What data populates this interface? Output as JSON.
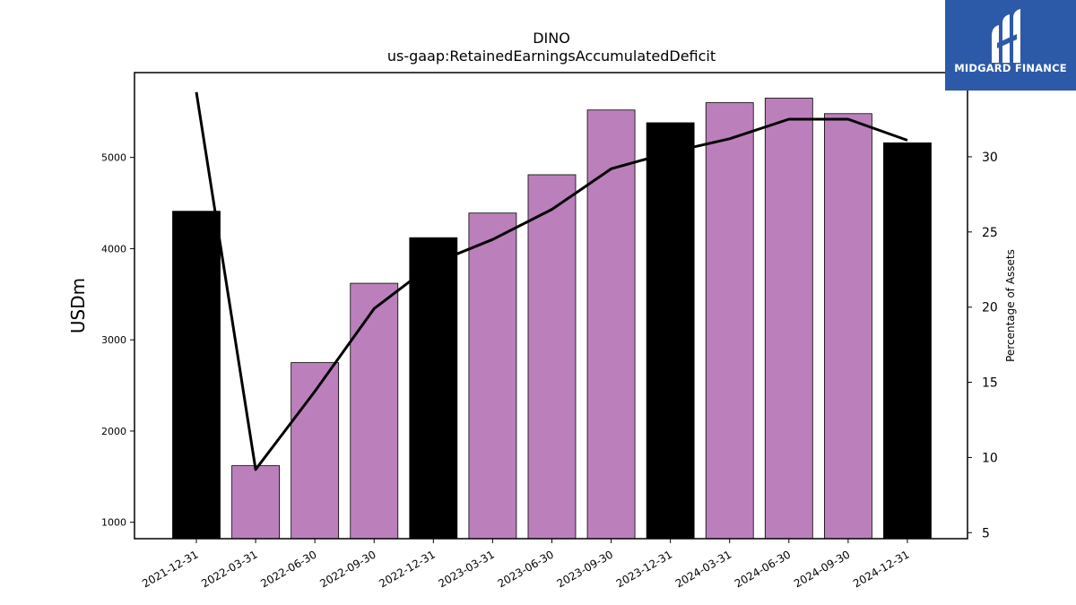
{
  "chart_data": {
    "type": "bar",
    "title": "DINO",
    "subtitle": "us-gaap:RetainedEarningsAccumulatedDeficit",
    "ylabel": "USDm",
    "y2label": "Percentage of Assets",
    "categories": [
      "2021-12-31",
      "2022-03-31",
      "2022-06-30",
      "2022-09-30",
      "2022-12-31",
      "2023-03-31",
      "2023-06-30",
      "2023-09-30",
      "2023-12-31",
      "2024-03-31",
      "2024-06-30",
      "2024-09-30",
      "2024-12-31"
    ],
    "values": [
      4410,
      1620,
      2750,
      3620,
      4120,
      4390,
      4810,
      5520,
      5380,
      5600,
      5650,
      5480,
      5160
    ],
    "bar_colors": [
      "#000000",
      "#bb80bb",
      "#bb80bb",
      "#bb80bb",
      "#000000",
      "#bb80bb",
      "#bb80bb",
      "#bb80bb",
      "#000000",
      "#bb80bb",
      "#bb80bb",
      "#bb80bb",
      "#000000"
    ],
    "line_values": [
      34.3,
      9.2,
      14.4,
      19.9,
      22.9,
      24.5,
      26.5,
      29.2,
      30.3,
      31.2,
      32.5,
      32.5,
      31.1
    ],
    "ylim": [
      820,
      5930
    ],
    "y2lim": [
      4.6,
      35.6
    ],
    "yticks": [
      1000,
      2000,
      3000,
      4000,
      5000
    ],
    "y2ticks": [
      5,
      10,
      15,
      20,
      25,
      30
    ],
    "line_color": "#000000",
    "grid": false
  },
  "logo": {
    "text": "MIDGARD FINANCE",
    "bg_color": "#2c5aa8"
  }
}
